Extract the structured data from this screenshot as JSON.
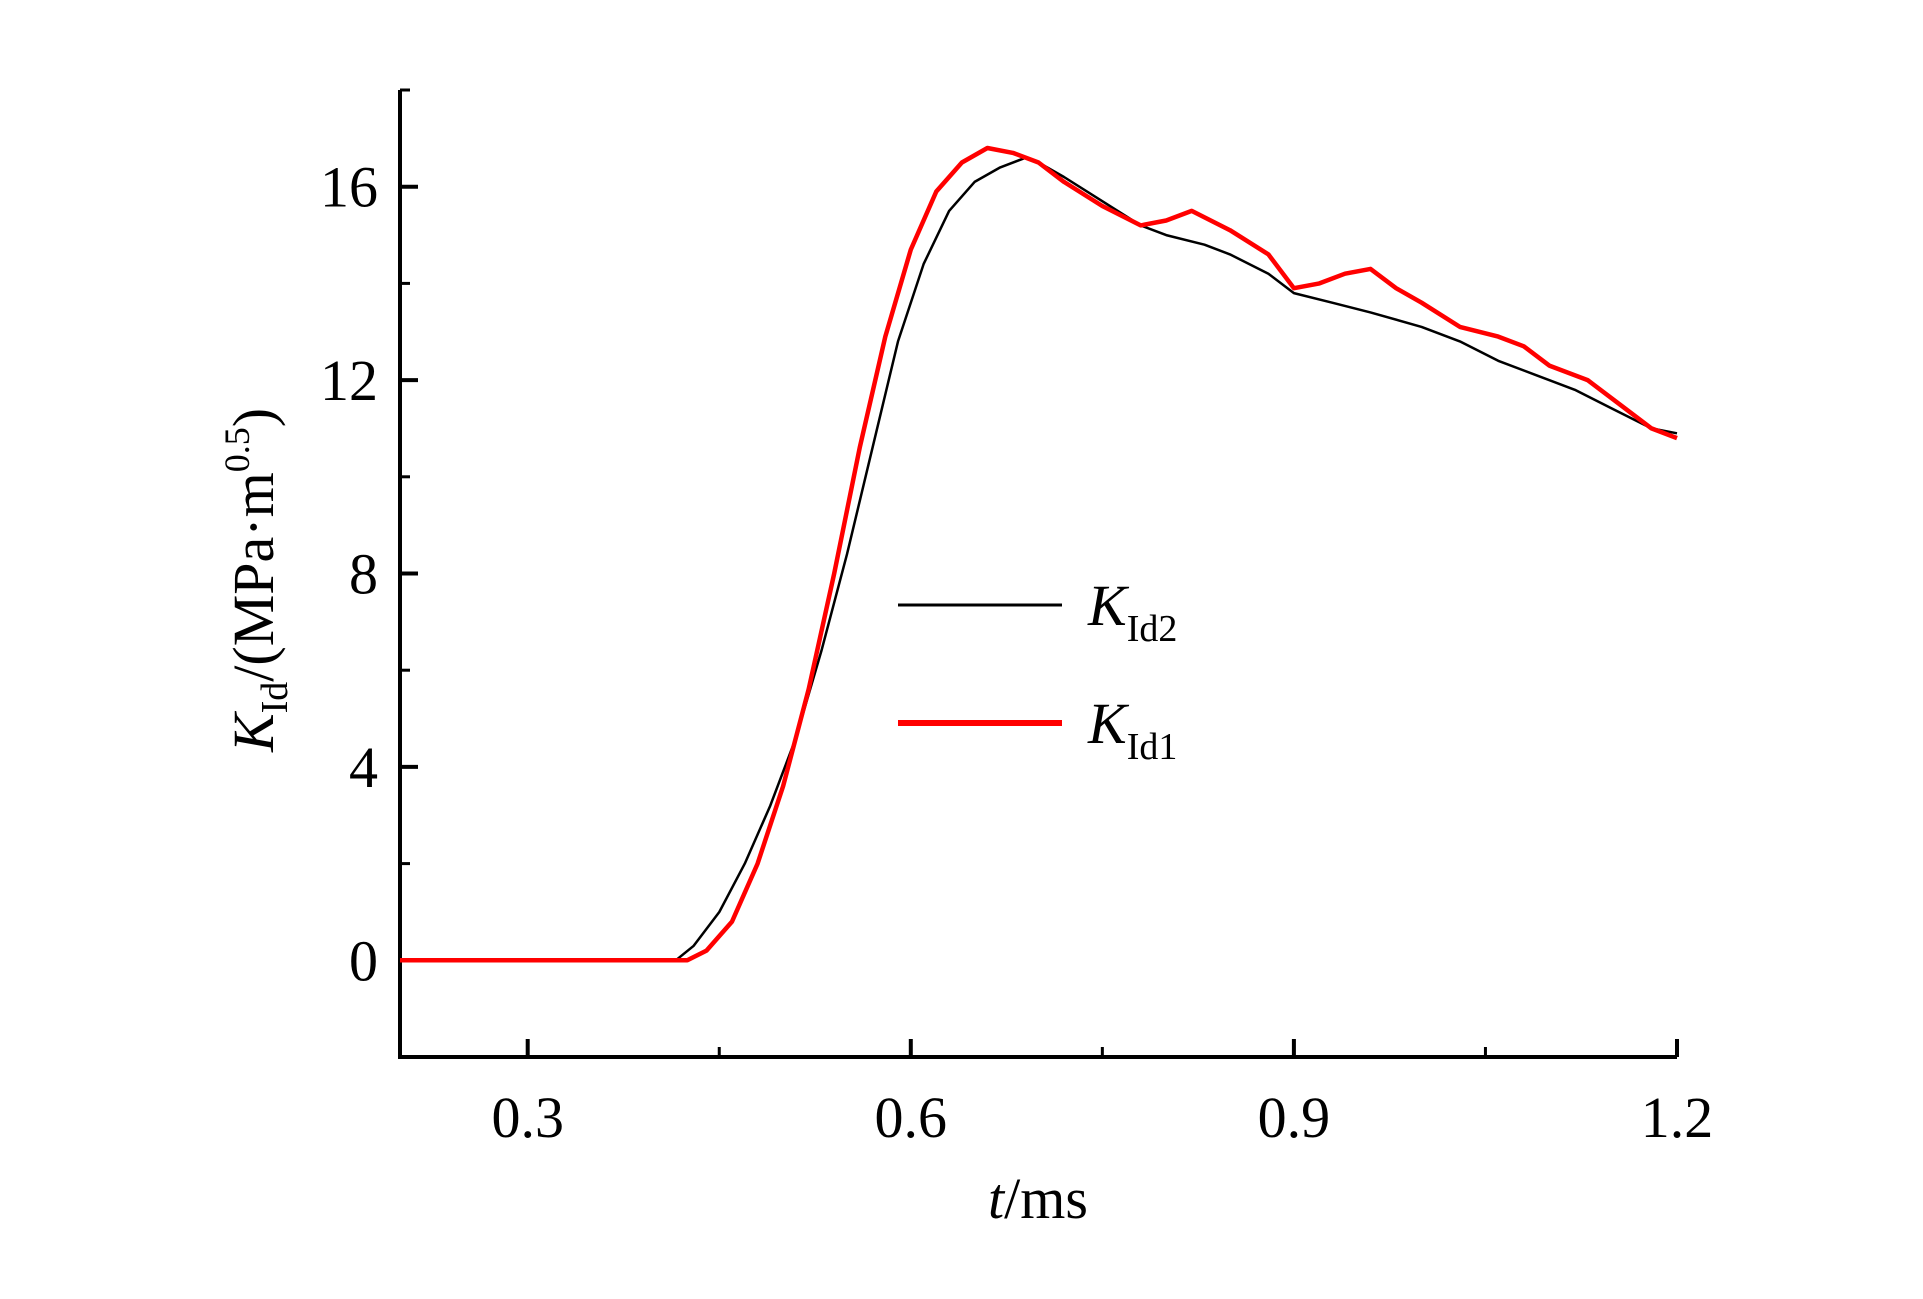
{
  "chart_data": {
    "type": "line",
    "xlabel": {
      "var": "t",
      "rest": "/ms"
    },
    "ylabel": {
      "var": "K",
      "sub": "Id",
      "rest": "/(MPa·m",
      "sup": "0.5",
      "close": ")"
    },
    "xlim": [
      0.2,
      1.2
    ],
    "ylim": [
      -2,
      18
    ],
    "xticks": [
      0.3,
      0.6,
      0.9,
      1.2
    ],
    "xtick_labels": [
      "0.3",
      "0.6",
      "0.9",
      "1.2"
    ],
    "yticks": [
      0,
      4,
      8,
      12,
      16
    ],
    "ytick_labels": [
      "0",
      "4",
      "8",
      "12",
      "16"
    ],
    "legend_position": "center",
    "series": [
      {
        "name": "K_Id2",
        "label_main": "K",
        "label_sub": "Id2",
        "color": "#000000",
        "x": [
          0.2,
          0.3,
          0.4,
          0.416,
          0.43,
          0.45,
          0.47,
          0.49,
          0.51,
          0.53,
          0.55,
          0.57,
          0.59,
          0.61,
          0.63,
          0.65,
          0.67,
          0.69,
          0.7,
          0.72,
          0.75,
          0.78,
          0.8,
          0.83,
          0.85,
          0.88,
          0.9,
          0.93,
          0.96,
          1.0,
          1.03,
          1.06,
          1.09,
          1.12,
          1.15,
          1.18,
          1.2
        ],
        "y": [
          0,
          0,
          0,
          0,
          0.3,
          1.0,
          2.0,
          3.2,
          4.6,
          6.4,
          8.4,
          10.6,
          12.8,
          14.4,
          15.5,
          16.1,
          16.4,
          16.6,
          16.5,
          16.2,
          15.7,
          15.2,
          15.0,
          14.8,
          14.6,
          14.2,
          13.8,
          13.6,
          13.4,
          13.1,
          12.8,
          12.4,
          12.1,
          11.8,
          11.4,
          11.0,
          10.9
        ]
      },
      {
        "name": "K_Id1",
        "label_main": "K",
        "label_sub": "Id1",
        "color": "#ff0000",
        "x": [
          0.2,
          0.3,
          0.4,
          0.425,
          0.44,
          0.46,
          0.48,
          0.5,
          0.52,
          0.54,
          0.56,
          0.58,
          0.6,
          0.62,
          0.64,
          0.66,
          0.68,
          0.7,
          0.72,
          0.75,
          0.78,
          0.8,
          0.82,
          0.85,
          0.88,
          0.9,
          0.92,
          0.94,
          0.96,
          0.98,
          1.0,
          1.03,
          1.06,
          1.08,
          1.1,
          1.13,
          1.16,
          1.18,
          1.2
        ],
        "y": [
          0,
          0,
          0,
          0,
          0.2,
          0.8,
          2.0,
          3.6,
          5.6,
          8.0,
          10.6,
          12.9,
          14.7,
          15.9,
          16.5,
          16.8,
          16.7,
          16.5,
          16.1,
          15.6,
          15.2,
          15.3,
          15.5,
          15.1,
          14.6,
          13.9,
          14.0,
          14.2,
          14.3,
          13.9,
          13.6,
          13.1,
          12.9,
          12.7,
          12.3,
          12.0,
          11.4,
          11.0,
          10.8
        ]
      }
    ]
  }
}
